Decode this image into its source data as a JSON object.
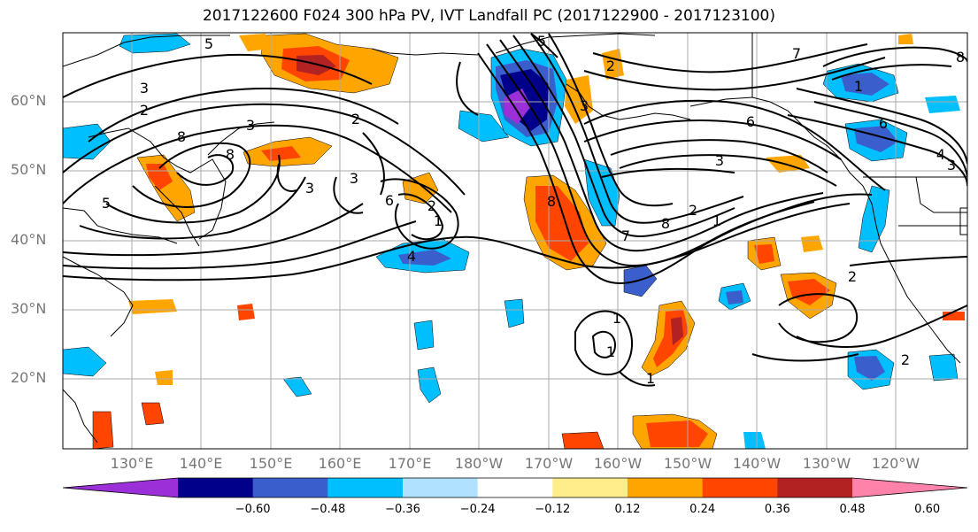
{
  "title": "2017122600 F024 300 hPa PV, IVT Landfall PC (2017122900 - 2017123100)",
  "lat_labels": [
    "60°N",
    "50°N",
    "40°N",
    "30°N",
    "20°N"
  ],
  "lon_labels": [
    "130°E",
    "140°E",
    "150°E",
    "160°E",
    "170°E",
    "180°W",
    "170°W",
    "160°W",
    "150°W",
    "140°W",
    "130°W",
    "120°W"
  ],
  "colorbar": {
    "colors": [
      "#9b30d8",
      "#00008b",
      "#3a5fcd",
      "#00bfff",
      "#b0e2ff",
      "#ffffff",
      "#ffec8b",
      "#ffa500",
      "#ff4500",
      "#b22222",
      "#ff82ab"
    ],
    "ticks": [
      "−0.60",
      "−0.48",
      "−0.36",
      "−0.24",
      "−0.12",
      "0.12",
      "0.24",
      "0.36",
      "0.48",
      "0.60"
    ]
  },
  "contour_labels": [
    "5",
    "3",
    "2",
    "8",
    "3",
    "5",
    "2",
    "8",
    "3",
    "6",
    "2",
    "4",
    "3",
    "5",
    "2",
    "1",
    "8",
    "7",
    "8",
    "2",
    "1",
    "3",
    "6",
    "2",
    "1",
    "1",
    "2",
    "1",
    "8",
    "7",
    "6",
    "4",
    "3",
    "1",
    "3"
  ],
  "colors": {
    "contour": "#000000",
    "grid": "#aaaaaa",
    "coast": "#000000"
  }
}
